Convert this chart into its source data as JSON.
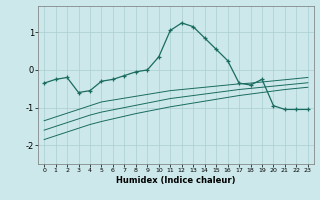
{
  "xlabel": "Humidex (Indice chaleur)",
  "x_values": [
    0,
    1,
    2,
    3,
    4,
    5,
    6,
    7,
    8,
    9,
    10,
    11,
    12,
    13,
    14,
    15,
    16,
    17,
    18,
    19,
    20,
    21,
    22,
    23
  ],
  "main_line": [
    -0.35,
    -0.25,
    -0.2,
    -0.6,
    -0.55,
    -0.3,
    -0.25,
    -0.15,
    -0.05,
    0.0,
    0.35,
    1.05,
    1.25,
    1.15,
    0.85,
    0.55,
    0.25,
    -0.35,
    -0.4,
    -0.25,
    -0.95,
    -1.05,
    -1.05,
    -1.05
  ],
  "lower_line_1": [
    -1.35,
    -1.25,
    -1.15,
    -1.05,
    -0.95,
    -0.85,
    -0.8,
    -0.75,
    -0.7,
    -0.65,
    -0.6,
    -0.55,
    -0.52,
    -0.49,
    -0.46,
    -0.43,
    -0.4,
    -0.37,
    -0.35,
    -0.32,
    -0.29,
    -0.26,
    -0.23,
    -0.2
  ],
  "lower_line_2": [
    -1.6,
    -1.5,
    -1.4,
    -1.3,
    -1.2,
    -1.12,
    -1.06,
    -1.0,
    -0.94,
    -0.88,
    -0.82,
    -0.76,
    -0.72,
    -0.68,
    -0.64,
    -0.6,
    -0.56,
    -0.52,
    -0.49,
    -0.46,
    -0.43,
    -0.4,
    -0.37,
    -0.34
  ],
  "lower_line_3": [
    -1.85,
    -1.75,
    -1.65,
    -1.55,
    -1.45,
    -1.37,
    -1.3,
    -1.23,
    -1.16,
    -1.1,
    -1.04,
    -0.98,
    -0.93,
    -0.88,
    -0.83,
    -0.78,
    -0.73,
    -0.68,
    -0.64,
    -0.6,
    -0.56,
    -0.52,
    -0.49,
    -0.46
  ],
  "bg_color": "#cce8ea",
  "line_color": "#1a6b60",
  "grid_color": "#aacfd2",
  "ylim": [
    -2.5,
    1.7
  ],
  "yticks": [
    -2,
    -1,
    0,
    1
  ],
  "xlim": [
    -0.5,
    23.5
  ]
}
